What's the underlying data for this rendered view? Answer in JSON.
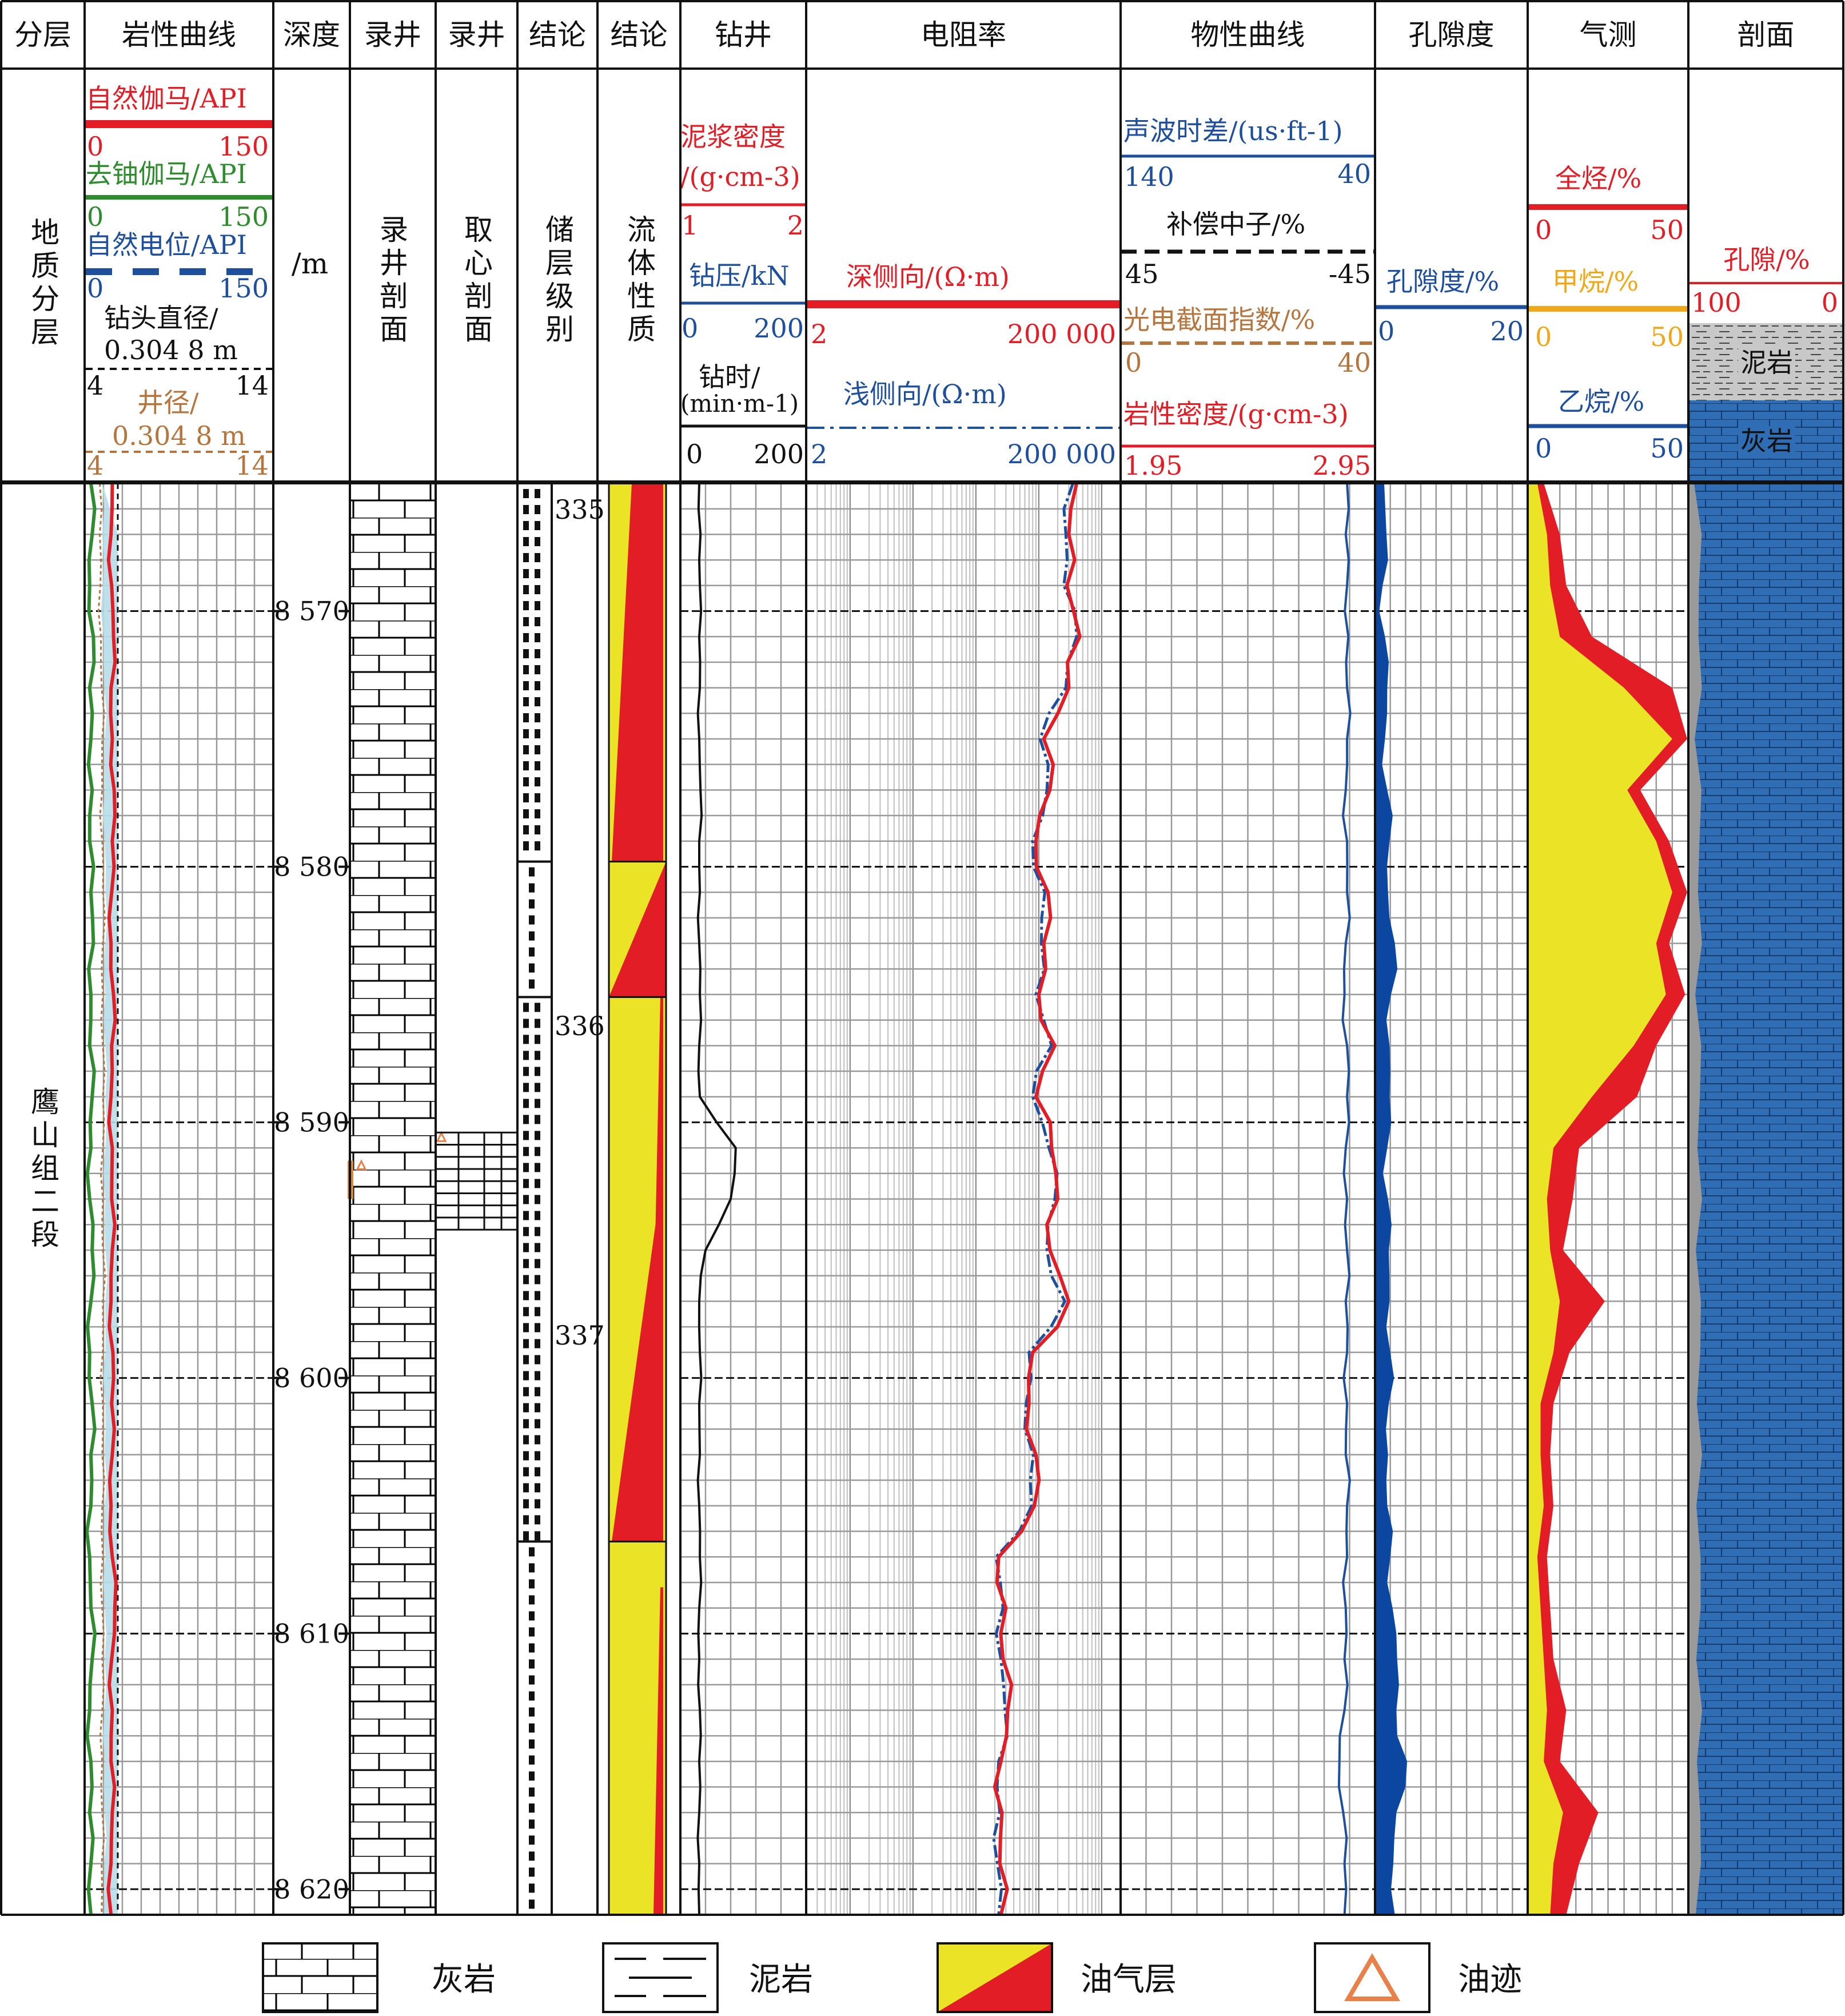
{
  "colors": {
    "red": "#e21d25",
    "green": "#2e8b2e",
    "blue": "#1e4f9c",
    "black": "#111111",
    "brown": "#b5753f",
    "gold": "#f0a818",
    "yellow": "#eae326",
    "pale_blue": "#b7dde8",
    "dark_blue": "#0b47a1",
    "litho_blue": "#2f6db5",
    "grid": "#999999"
  },
  "columns": [
    {
      "key": "strat",
      "title": "分层"
    },
    {
      "key": "litho_curves",
      "title": "岩性曲线"
    },
    {
      "key": "depth",
      "title": "深度"
    },
    {
      "key": "mudlog",
      "title": "录井"
    },
    {
      "key": "mudlog2",
      "title": "录井"
    },
    {
      "key": "concl1",
      "title": "结论"
    },
    {
      "key": "concl2",
      "title": "结论"
    },
    {
      "key": "drilling",
      "title": "钻井"
    },
    {
      "key": "resistivity",
      "title": "电阻率"
    },
    {
      "key": "physical",
      "title": "物性曲线"
    },
    {
      "key": "porosity",
      "title": "孔隙度"
    },
    {
      "key": "gas",
      "title": "气测"
    },
    {
      "key": "profile",
      "title": "剖面"
    }
  ],
  "header_texts": {
    "strat": "地质分层",
    "depth_unit": "/m",
    "mudlog_section": "录井剖面",
    "core_section": "取心剖面",
    "reservoir_grade": "储层级别",
    "fluid_property": "流体性质"
  },
  "curve_headers": {
    "gamma": {
      "label": "自然伽马/API",
      "min": "0",
      "max": "150"
    },
    "uranium_free_gamma": {
      "label": "去铀伽马/API",
      "min": "0",
      "max": "150"
    },
    "sp": {
      "label": "自然电位/API",
      "min": "0",
      "max": "150"
    },
    "bit_size": {
      "label_line1": "钻头直径/",
      "label_line2": "0.304 8 m",
      "min": "4",
      "max": "14"
    },
    "caliper": {
      "label_line1": "井径/",
      "label_line2": "0.304 8 m",
      "min": "4",
      "max": "14"
    },
    "mud_density": {
      "label_line1": "泥浆密度",
      "label_line2": "/(g·cm-3)",
      "min": "1",
      "max": "2"
    },
    "wob": {
      "label": "钻压/kN",
      "min": "0",
      "max": "200"
    },
    "rop": {
      "label_line1": "钻时/",
      "label_line2": "(min·m-1)",
      "min": "0",
      "max": "200"
    },
    "deep_lateral": {
      "label": "深侧向/(Ω·m)",
      "min": "2",
      "max": "200 000"
    },
    "shallow_lateral": {
      "label": "浅侧向/(Ω·m)",
      "min": "2",
      "max": "200 000"
    },
    "sonic": {
      "label": "声波时差/(us·ft-1)",
      "min": "140",
      "max": "40"
    },
    "neutron": {
      "label": "补偿中子/%",
      "min": "45",
      "max": "-45"
    },
    "pe": {
      "label": "光电截面指数/%",
      "min": "0",
      "max": "40"
    },
    "density": {
      "label": "岩性密度/(g·cm-3)",
      "min": "1.95",
      "max": "2.95"
    },
    "porosity": {
      "label": "孔隙度/%",
      "min": "0",
      "max": "20"
    },
    "total_hc": {
      "label": "全烃/%",
      "min": "0",
      "max": "50"
    },
    "methane": {
      "label": "甲烷/%",
      "min": "0",
      "max": "50"
    },
    "ethane": {
      "label": "乙烷/%",
      "min": "0",
      "max": "50"
    },
    "profile_porosity": {
      "label": "孔隙/%",
      "min": "100",
      "max": "0"
    },
    "profile_mudstone": {
      "label": "泥岩"
    },
    "profile_limestone": {
      "label": "灰岩"
    }
  },
  "formation": "鹰山组二段",
  "depth_axis": {
    "ticks": [
      "8 570",
      "8 580",
      "8 590",
      "8 600",
      "8 610",
      "8 620"
    ],
    "top": 8565,
    "bottom": 8621,
    "ylim": [
      8565,
      8621
    ]
  },
  "zone_numbers": [
    {
      "label": "335",
      "depth": 8565.9
    },
    {
      "label": "336",
      "depth": 8586.1
    },
    {
      "label": "337",
      "depth": 8598.2
    }
  ],
  "reservoir_intervals": [
    {
      "top": 8565,
      "bottom": 8579.8
    },
    {
      "top": 8579.8,
      "bottom": 8585.1
    },
    {
      "top": 8585.1,
      "bottom": 8606.4
    },
    {
      "top": 8606.4,
      "bottom": 8621
    }
  ],
  "fluid_intervals": [
    {
      "top": 8565,
      "bottom": 8579.8,
      "style": "red-wedge"
    },
    {
      "top": 8579.8,
      "bottom": 8585.1,
      "style": "diagonal"
    },
    {
      "top": 8585.1,
      "bottom": 8606.4,
      "style": "yellow-wedge"
    },
    {
      "top": 8606.4,
      "bottom": 8621,
      "style": "yellow"
    }
  ],
  "core_interval": {
    "top": 8590.4,
    "bottom": 8594.2
  },
  "oil_trace_depths": [
    8591.7,
    8590.6
  ],
  "chart_data": {
    "type": "well-log",
    "depth_unit": "m",
    "depths": [
      8565,
      8567,
      8569,
      8571,
      8573,
      8575,
      8577,
      8579,
      8581,
      8583,
      8585,
      8587,
      8589,
      8591,
      8593,
      8595,
      8597,
      8599,
      8601,
      8603,
      8605,
      8607,
      8609,
      8611,
      8613,
      8615,
      8617,
      8619,
      8621
    ],
    "series": [
      {
        "name": "自然伽马/API",
        "values": [
          22,
          21,
          21.5,
          23,
          21,
          22,
          23.5,
          22,
          21.5,
          21,
          23,
          21.5,
          21,
          22,
          21.5,
          22,
          21,
          22.5,
          21.5,
          22,
          21,
          22,
          24,
          21.5,
          22,
          21,
          22,
          21,
          21
        ],
        "xlim": [
          0,
          150
        ]
      },
      {
        "name": "去铀伽马/API",
        "values": [
          5,
          6,
          4,
          7,
          4,
          5,
          6,
          4,
          5,
          7,
          5,
          4,
          6,
          5,
          4,
          6,
          5,
          4,
          6,
          5,
          5,
          4,
          5,
          6,
          4,
          5,
          4,
          5,
          5
        ],
        "xlim": [
          0,
          150
        ]
      },
      {
        "name": "自然电位/API",
        "values": [
          12,
          12,
          12.5,
          13,
          13.5,
          14,
          14,
          14,
          14.5,
          14.5,
          14.5,
          14.5,
          14.5,
          14.5,
          14.5,
          14.5,
          14.5,
          14.5,
          14.5,
          14,
          14,
          14.5,
          14,
          14,
          14,
          14,
          14,
          13.5,
          13.5
        ],
        "xlim": [
          0,
          150
        ]
      },
      {
        "name": "钻时",
        "values": [
          30,
          32,
          31,
          30,
          31,
          30,
          32,
          30,
          31,
          30,
          31,
          30,
          31,
          88,
          80,
          40,
          30,
          31,
          30,
          31,
          30,
          31,
          30,
          30,
          31,
          30,
          30,
          30,
          30
        ],
        "xlim": [
          0,
          200
        ]
      },
      {
        "name": "深侧向/(Ω·m)",
        "values": [
          40000,
          30000,
          28000,
          45000,
          30000,
          12000,
          15000,
          9000,
          14000,
          12000,
          10000,
          18000,
          9000,
          16000,
          20000,
          15000,
          30000,
          8000,
          7000,
          9000,
          8500,
          2300,
          3000,
          2700,
          3200,
          2500,
          2600,
          2400,
          2500
        ],
        "xlim": [
          2,
          200000
        ]
      },
      {
        "name": "浅侧向/(Ω·m)",
        "values": [
          35000,
          27000,
          25000,
          40000,
          27000,
          10500,
          13500,
          8000,
          12500,
          11000,
          9000,
          16000,
          8000,
          14500,
          18000,
          13500,
          26000,
          7000,
          6300,
          8200,
          7700,
          2100,
          2700,
          2500,
          2900,
          2300,
          2400,
          2200,
          2300
        ],
        "xlim": [
          2,
          200000
        ]
      },
      {
        "name": "声波时差/(us·ft-1)",
        "values": [
          51,
          51.5,
          51,
          50.5,
          51,
          51,
          51.5,
          51,
          51,
          51.5,
          52,
          51,
          51,
          51.5,
          51,
          51,
          51.5,
          51,
          51,
          51.5,
          51,
          51,
          51.5,
          52,
          52,
          54,
          52.5,
          52,
          52
        ],
        "xlim": [
          140,
          40
        ]
      },
      {
        "name": "孔隙度/%",
        "values": [
          1.2,
          1.5,
          1.0,
          1.3,
          1.6,
          1.3,
          1.6,
          1.9,
          1.7,
          2.6,
          2.1,
          1.9,
          1.9,
          1.6,
          1.7,
          1.8,
          1.9,
          2.0,
          1.8,
          1.7,
          1.6,
          2.0,
          2.3,
          2.9,
          2.8,
          4.2,
          2.8,
          2.4,
          2.6
        ],
        "xlim": [
          0,
          20
        ]
      },
      {
        "name": "全烃/%",
        "values": [
          5,
          10,
          12,
          20,
          45,
          50,
          35,
          44,
          50,
          44,
          49,
          40,
          34,
          16,
          14,
          11,
          24,
          13,
          8,
          7,
          8,
          6,
          7,
          8,
          12,
          10,
          22,
          16,
          12
        ],
        "xlim": [
          0,
          50
        ]
      },
      {
        "name": "甲烷/%",
        "values": [
          3,
          6,
          7,
          10,
          30,
          45,
          31,
          40,
          45,
          40,
          43,
          33,
          20,
          8,
          6,
          7,
          10,
          8,
          4,
          4,
          5,
          3,
          4,
          5,
          6,
          5,
          11,
          8,
          7
        ],
        "xlim": [
          0,
          50
        ]
      }
    ]
  },
  "legend": [
    {
      "symbol": "limestone",
      "label": "灰岩"
    },
    {
      "symbol": "mudstone",
      "label": "泥岩"
    },
    {
      "symbol": "oil-gas",
      "label": "油气层"
    },
    {
      "symbol": "oil-trace",
      "label": "油迹"
    }
  ]
}
